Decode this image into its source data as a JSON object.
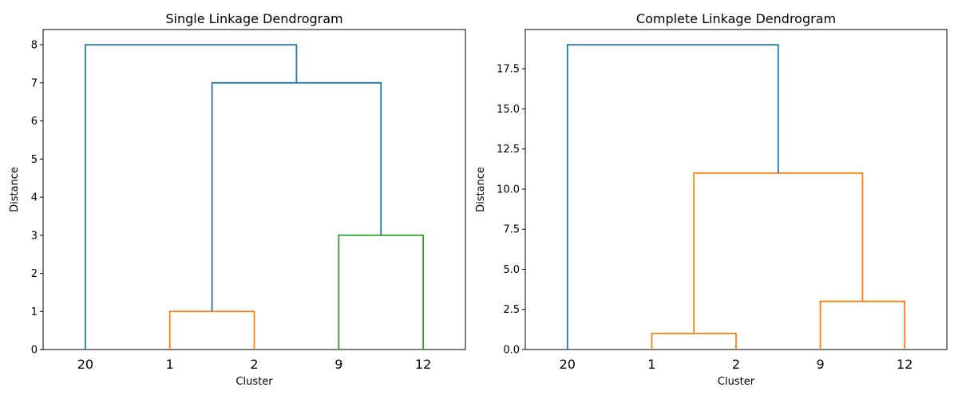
{
  "chart_data": [
    {
      "type": "dendrogram",
      "title": "Single Linkage Dendrogram",
      "xlabel": "Cluster",
      "ylabel": "Distance",
      "leaves": [
        "20",
        "1",
        "2",
        "9",
        "12"
      ],
      "ylim": [
        0,
        8.4
      ],
      "yticks": [
        0,
        1,
        2,
        3,
        4,
        5,
        6,
        7,
        8
      ],
      "ytick_labels": [
        "0",
        "1",
        "2",
        "3",
        "4",
        "5",
        "6",
        "7",
        "8"
      ],
      "merges": [
        {
          "left": "1",
          "right": "2",
          "height": 1,
          "color": "#ff7f0e"
        },
        {
          "left": "9",
          "right": "12",
          "height": 3,
          "color": "#2ca02c"
        },
        {
          "left": "1,2",
          "right": "9,12",
          "height": 7,
          "color": "#1f77b4"
        },
        {
          "left": "20",
          "right": "1,2,9,12",
          "height": 8,
          "color": "#1f77b4"
        }
      ]
    },
    {
      "type": "dendrogram",
      "title": "Complete Linkage Dendrogram",
      "xlabel": "Cluster",
      "ylabel": "Distance",
      "leaves": [
        "20",
        "1",
        "2",
        "9",
        "12"
      ],
      "ylim": [
        0,
        19.95
      ],
      "yticks": [
        0,
        2.5,
        5,
        7.5,
        10,
        12.5,
        15,
        17.5
      ],
      "ytick_labels": [
        "0.0",
        "2.5",
        "5.0",
        "7.5",
        "10.0",
        "12.5",
        "15.0",
        "17.5"
      ],
      "merges": [
        {
          "left": "1",
          "right": "2",
          "height": 1,
          "color": "#ff7f0e"
        },
        {
          "left": "9",
          "right": "12",
          "height": 3,
          "color": "#ff7f0e"
        },
        {
          "left": "1,2",
          "right": "9,12",
          "height": 11,
          "color": "#ff7f0e"
        },
        {
          "left": "20",
          "right": "1,2,9,12",
          "height": 19,
          "color": "#1f77b4"
        }
      ]
    }
  ]
}
